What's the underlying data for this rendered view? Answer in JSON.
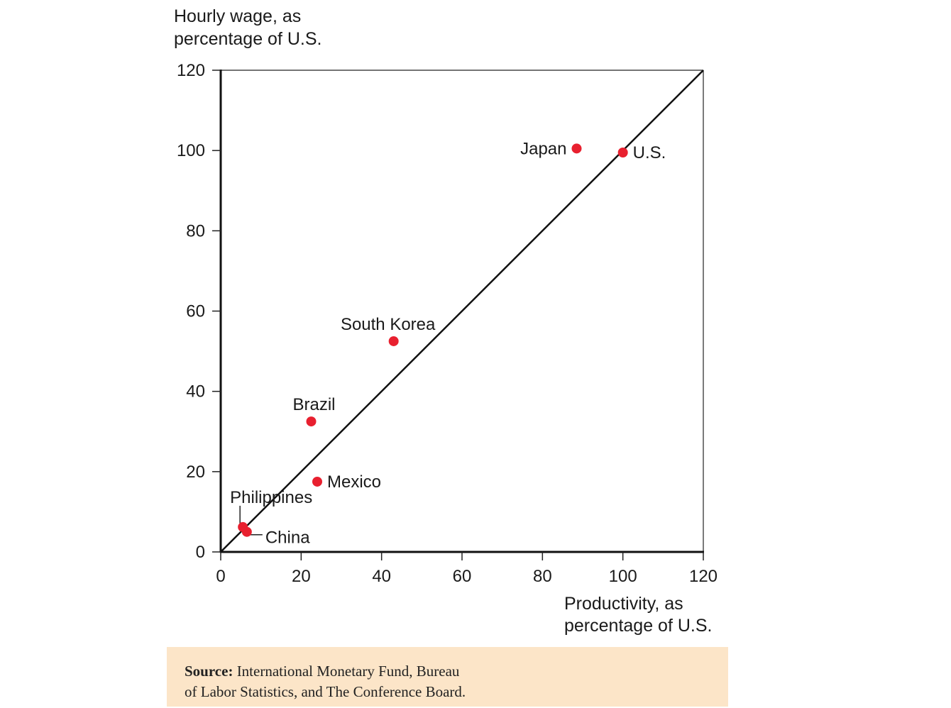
{
  "chart_data": {
    "type": "scatter",
    "ylabel": [
      "Hourly wage, as",
      "percentage of U.S."
    ],
    "xlabel": [
      "Productivity, as",
      "percentage of U.S."
    ],
    "xlim": [
      0,
      120
    ],
    "ylim": [
      0,
      120
    ],
    "x_ticks": [
      "0",
      "20",
      "40",
      "60",
      "80",
      "100",
      "120"
    ],
    "y_ticks": [
      "0",
      "20",
      "40",
      "60",
      "80",
      "100",
      "120"
    ],
    "grid": false,
    "reference_line": {
      "type": "diagonal",
      "from": [
        0,
        0
      ],
      "to": [
        120,
        120
      ]
    },
    "point_color": "#e8202f",
    "points": [
      {
        "label": "Japan",
        "x": 88.5,
        "y": 100.5
      },
      {
        "label": "U.S.",
        "x": 100,
        "y": 99.5
      },
      {
        "label": "South Korea",
        "x": 43,
        "y": 52.5
      },
      {
        "label": "Brazil",
        "x": 22.5,
        "y": 32.5
      },
      {
        "label": "Mexico",
        "x": 24,
        "y": 17.5
      },
      {
        "label": "Philippines",
        "x": 5.5,
        "y": 6.2
      },
      {
        "label": "China",
        "x": 6.5,
        "y": 5
      }
    ]
  },
  "source": {
    "label": "Source:",
    "text_line1": " International Monetary Fund, Bureau",
    "text_line2": "of Labor Statistics, and The Conference Board."
  }
}
